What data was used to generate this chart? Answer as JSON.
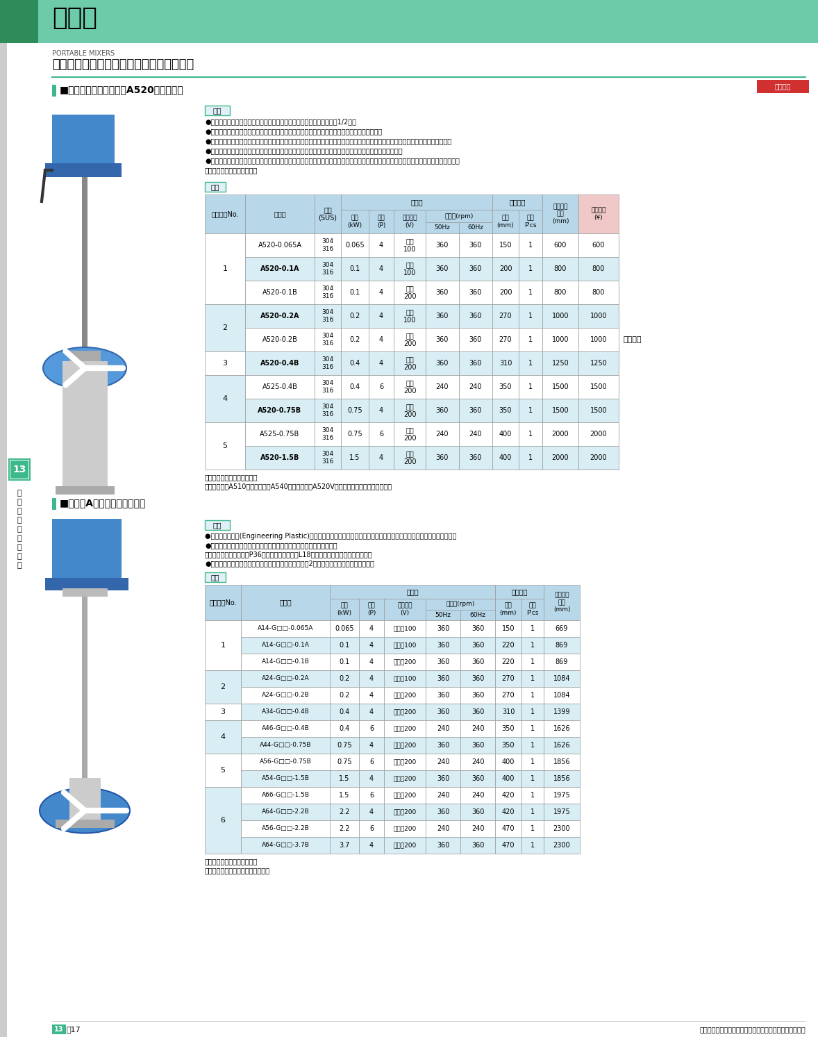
{
  "page_title": "攪拌機",
  "subtitle_en": "PORTABLE MIXERS",
  "subtitle_ja": "ポータブルミキサー［佐竹化学機械工業］",
  "header_bg": "#6DCBAA",
  "header_left_dark": "#2E8B5A",
  "section1_title": "■ポータブルミキサー　A520（中速形）",
  "section1_features_title": "特長",
  "section1_features": [
    "●本体の素材に特殊強化軽合金やプラスチックを採用。重量は従来機の1/2に。",
    "●クランプが従来と比べてコンパクトに。締め付けも簡単、角度調整も非常に楽になりました。",
    "●ミキサーの命ともいえるギヤにエンプラの採用で性能がグンとアップ。精度は一段と高く、運転音は低く、寿命は長くなりました。",
    "●無潤滑ですから面倒なメンテナンスも考える必要はありません。ハイクオリティを裏付ける自信の証明。",
    "●小容量から中容量の攪拌に適します。一般的な可溶液一混合・希釈・伝熱・比較的溶解しやすい固液攪拌・分散・スラリーの沈降防止・",
    "　均一攪拌にピッタリです。"
  ],
  "shiyou1": "仕様",
  "shiyou2": "仕様",
  "table1_note1": "＊別途荷運賃がかかります。",
  "table1_note2": "＊掲載外にもA510（高速形）、A540（低速形）、A520V（無段変速形）もございます。",
  "section2_title": "■マルチAミキサー（中速形）",
  "section2_features_title": "特長",
  "section2_features": [
    "●ギヤにエンプラ(Engineering Plastic)を採用。＜中速形＞精度は一段と高く、運転音は低く、寿命は長くなりました。",
    "●電磁流速計の測定データから最新の技術で、高性能インペラを開発。",
    "　（中速形、可変速形：P36インペラ、低速形：L18インペラ）省エネに大きく貢献。",
    "●軸封部にはオイルシール、グランドパッキンシールの2種類を標準として用意しました。"
  ],
  "table1_rows": [
    [
      "1",
      "A520-0.065A",
      "304\n316",
      "0.065",
      "4",
      "単相\n100",
      "360",
      "360",
      "150",
      "1",
      "600"
    ],
    [
      "1",
      "A520-0.1A",
      "304\n316",
      "0.1",
      "4",
      "単相\n100",
      "360",
      "360",
      "200",
      "1",
      "800"
    ],
    [
      "1",
      "A520-0.1B",
      "304\n316",
      "0.1",
      "4",
      "三相\n200",
      "360",
      "360",
      "200",
      "1",
      "800"
    ],
    [
      "2",
      "A520-0.2A",
      "304\n316",
      "0.2",
      "4",
      "単相\n100",
      "360",
      "360",
      "270",
      "1",
      "1000"
    ],
    [
      "2",
      "A520-0.2B",
      "304\n316",
      "0.2",
      "4",
      "三相\n200",
      "360",
      "360",
      "270",
      "1",
      "1000"
    ],
    [
      "3",
      "A520-0.4B",
      "304\n316",
      "0.4",
      "4",
      "三相\n200",
      "360",
      "360",
      "310",
      "1",
      "1250"
    ],
    [
      "4",
      "A525-0.4B",
      "304\n316",
      "0.4",
      "6",
      "三相\n200",
      "240",
      "240",
      "350",
      "1",
      "1500"
    ],
    [
      "4",
      "A520-0.75B",
      "304\n316",
      "0.75",
      "4",
      "三相\n200",
      "360",
      "360",
      "350",
      "1",
      "1500"
    ],
    [
      "5",
      "A525-0.75B",
      "304\n316",
      "0.75",
      "6",
      "三相\n200",
      "240",
      "240",
      "400",
      "1",
      "2000"
    ],
    [
      "5",
      "A520-1.5B",
      "304\n316",
      "1.5",
      "4",
      "三相\n200",
      "360",
      "360",
      "400",
      "1",
      "2000"
    ]
  ],
  "table2_rows": [
    [
      "1",
      "A14-G□□-0.065A",
      "0.065",
      "4",
      "単相・100",
      "360",
      "360",
      "150",
      "1",
      "669"
    ],
    [
      "1",
      "A14-G□□-0.1A",
      "0.1",
      "4",
      "単相・100",
      "360",
      "360",
      "220",
      "1",
      "869"
    ],
    [
      "1",
      "A14-G□□-0.1B",
      "0.1",
      "4",
      "三相・200",
      "360",
      "360",
      "220",
      "1",
      "869"
    ],
    [
      "2",
      "A24-G□□-0.2A",
      "0.2",
      "4",
      "単相・100",
      "360",
      "360",
      "270",
      "1",
      "1084"
    ],
    [
      "2",
      "A24-G□□-0.2B",
      "0.2",
      "4",
      "三相・200",
      "360",
      "360",
      "270",
      "1",
      "1084"
    ],
    [
      "3",
      "A34-G□□-0.4B",
      "0.4",
      "4",
      "三相・200",
      "360",
      "360",
      "310",
      "1",
      "1399"
    ],
    [
      "4",
      "A46-G□□-0.4B",
      "0.4",
      "6",
      "三相・200",
      "240",
      "240",
      "350",
      "1",
      "1626"
    ],
    [
      "4",
      "A44-G□□-0.75B",
      "0.75",
      "4",
      "三相・200",
      "360",
      "360",
      "350",
      "1",
      "1626"
    ],
    [
      "5",
      "A56-G□□-0.75B",
      "0.75",
      "6",
      "三相・200",
      "240",
      "240",
      "400",
      "1",
      "1856"
    ],
    [
      "5",
      "A54-G□□-1.5B",
      "1.5",
      "4",
      "三相・200",
      "360",
      "360",
      "400",
      "1",
      "1856"
    ],
    [
      "6",
      "A66-G□□-1.5B",
      "1.5",
      "6",
      "三相・200",
      "240",
      "240",
      "420",
      "1",
      "1975"
    ],
    [
      "6",
      "A64-G□□-2.2B",
      "2.2",
      "4",
      "三相・200",
      "360",
      "360",
      "420",
      "1",
      "1975"
    ],
    [
      "6",
      "A56-G□□-2.2B",
      "2.2",
      "6",
      "三相・200",
      "240",
      "240",
      "470",
      "1",
      "2300"
    ],
    [
      "6",
      "A64-G□□-3.7B",
      "3.7",
      "4",
      "三相・200",
      "360",
      "360",
      "470",
      "1",
      "2300"
    ]
  ],
  "table2_note1": "＊別途荷運賃がかかります。",
  "table2_note2": "＊低速形、可変速形もございます。",
  "page_number": "13－17",
  "footer_note": "表示価格はすべて税抜きです。別途消費税がかかります。",
  "open_label": "オープン",
  "cat_number": "13",
  "cat_label": "土木建築・配管電設",
  "untin_badge": "運賃別途",
  "table_header_bg": "#B8D8EA",
  "table_row_alt_bg": "#D8EEF4",
  "table_row_white": "#FFFFFF",
  "border_color": "#999999",
  "section_square_color": "#3DB88A",
  "badge_color": "#D03030",
  "left_sidebar_green": "#3DB88A"
}
